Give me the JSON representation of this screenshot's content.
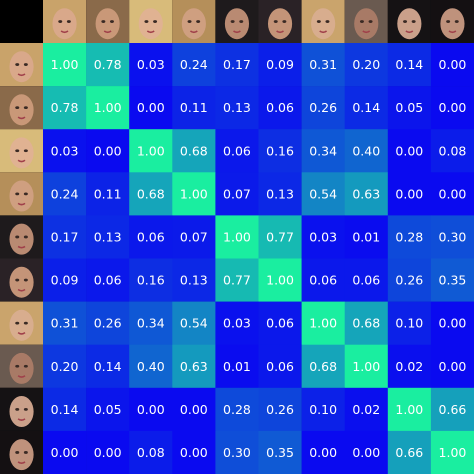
{
  "chart_data": {
    "type": "heatmap",
    "title": "",
    "xlabel": "",
    "ylabel": "",
    "row_images": [
      "face-photo",
      "face-photo",
      "face-photo",
      "face-photo",
      "face-photo",
      "face-photo",
      "face-photo",
      "face-photo",
      "face-photo",
      "face-photo"
    ],
    "col_images": [
      "face-photo",
      "face-photo",
      "face-photo",
      "face-photo",
      "face-photo",
      "face-photo",
      "face-photo",
      "face-photo",
      "face-photo",
      "face-photo"
    ],
    "value_labels": [
      [
        "1.00",
        "0.78",
        "0.03",
        "0.24",
        "0.17",
        "0.09",
        "0.31",
        "0.20",
        "0.14",
        "0.00"
      ],
      [
        "0.78",
        "1.00",
        "0.00",
        "0.11",
        "0.13",
        "0.06",
        "0.26",
        "0.14",
        "0.05",
        "0.00"
      ],
      [
        "0.03",
        "0.00",
        "1.00",
        "0.68",
        "0.06",
        "0.16",
        "0.34",
        "0.40",
        "0.00",
        "0.08"
      ],
      [
        "0.24",
        "0.11",
        "0.68",
        "1.00",
        "0.07",
        "0.13",
        "0.54",
        "0.63",
        "0.00",
        "0.00"
      ],
      [
        "0.17",
        "0.13",
        "0.06",
        "0.07",
        "1.00",
        "0.77",
        "0.03",
        "0.01",
        "0.28",
        "0.30"
      ],
      [
        "0.09",
        "0.06",
        "0.16",
        "0.13",
        "0.77",
        "1.00",
        "0.06",
        "0.06",
        "0.26",
        "0.35"
      ],
      [
        "0.31",
        "0.26",
        "0.34",
        "0.54",
        "0.03",
        "0.06",
        "1.00",
        "0.68",
        "0.10",
        "0.00"
      ],
      [
        "0.20",
        "0.14",
        "0.40",
        "0.63",
        "0.01",
        "0.06",
        "0.68",
        "1.00",
        "0.02",
        "0.00"
      ],
      [
        "0.14",
        "0.05",
        "0.00",
        "0.00",
        "0.28",
        "0.26",
        "0.10",
        "0.02",
        "1.00",
        "0.66"
      ],
      [
        "0.00",
        "0.00",
        "0.08",
        "0.00",
        "0.30",
        "0.35",
        "0.00",
        "0.00",
        "0.66",
        "1.00"
      ]
    ],
    "values": [
      [
        1.0,
        0.78,
        0.03,
        0.24,
        0.17,
        0.09,
        0.31,
        0.2,
        0.14,
        0.0
      ],
      [
        0.78,
        1.0,
        0.0,
        0.11,
        0.13,
        0.06,
        0.26,
        0.14,
        0.05,
        0.0
      ],
      [
        0.03,
        0.0,
        1.0,
        0.68,
        0.06,
        0.16,
        0.34,
        0.4,
        0.0,
        0.08
      ],
      [
        0.24,
        0.11,
        0.68,
        1.0,
        0.07,
        0.13,
        0.54,
        0.63,
        0.0,
        0.0
      ],
      [
        0.17,
        0.13,
        0.06,
        0.07,
        1.0,
        0.77,
        0.03,
        0.01,
        0.28,
        0.3
      ],
      [
        0.09,
        0.06,
        0.16,
        0.13,
        0.77,
        1.0,
        0.06,
        0.06,
        0.26,
        0.35
      ],
      [
        0.31,
        0.26,
        0.34,
        0.54,
        0.03,
        0.06,
        1.0,
        0.68,
        0.1,
        0.0
      ],
      [
        0.2,
        0.14,
        0.4,
        0.63,
        0.01,
        0.06,
        0.68,
        1.0,
        0.02,
        0.0
      ],
      [
        0.14,
        0.05,
        0.0,
        0.0,
        0.28,
        0.26,
        0.1,
        0.02,
        1.0,
        0.66
      ],
      [
        0.0,
        0.0,
        0.08,
        0.0,
        0.3,
        0.35,
        0.0,
        0.0,
        0.66,
        1.0
      ]
    ],
    "value_range": [
      0,
      1
    ],
    "colors": {
      "low": "#0a0af0",
      "high": "#1aeea0",
      "background": "#000000",
      "text": "#ffffff"
    },
    "grid": false,
    "legend": "none"
  }
}
